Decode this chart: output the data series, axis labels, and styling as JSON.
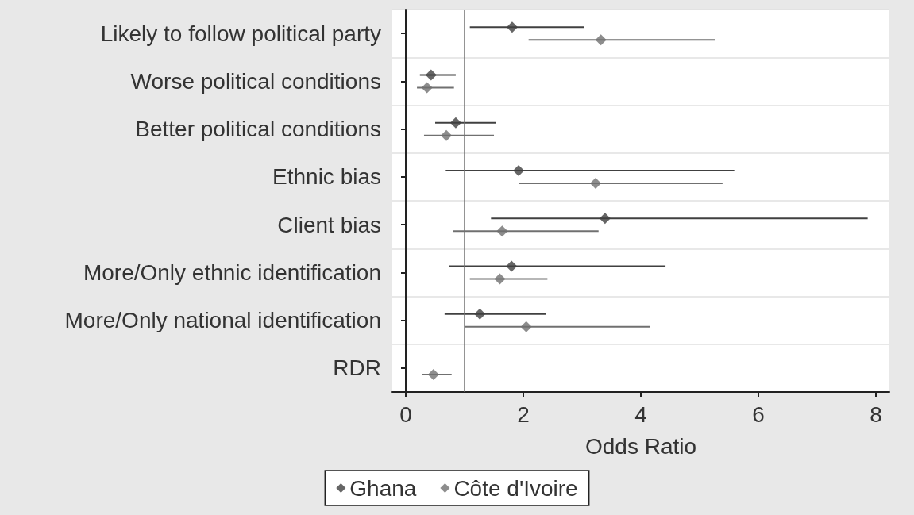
{
  "chart_data": {
    "type": "scatter",
    "xlabel": "Odds Ratio",
    "categories": [
      "Likely to follow political party",
      "Worse political conditions",
      "Better political conditions",
      "Ethnic bias",
      "Client bias",
      "More/Only ethnic identification",
      "More/Only national identification",
      "RDR"
    ],
    "series": [
      {
        "name": "Ghana",
        "color": "#404040",
        "values": [
          1.81,
          0.43,
          0.85,
          1.92,
          3.39,
          1.8,
          1.26,
          null
        ],
        "errors": [
          [
            1.09,
            3.03
          ],
          [
            0.24,
            0.85
          ],
          [
            0.5,
            1.54
          ],
          [
            0.68,
            5.59
          ],
          [
            1.45,
            7.86
          ],
          [
            0.73,
            4.42
          ],
          [
            0.66,
            2.38
          ],
          null
        ]
      },
      {
        "name": "Côte d'Ivoire",
        "color": "#707070",
        "values": [
          3.32,
          0.36,
          0.69,
          3.23,
          1.64,
          1.6,
          2.05,
          0.47
        ],
        "errors": [
          [
            2.09,
            5.27
          ],
          [
            0.19,
            0.82
          ],
          [
            0.31,
            1.5
          ],
          [
            1.93,
            5.39
          ],
          [
            0.8,
            3.28
          ],
          [
            1.09,
            2.41
          ],
          [
            1.01,
            4.16
          ],
          [
            0.28,
            0.78
          ]
        ]
      }
    ],
    "orientation": "horizontal",
    "xlim": [
      -0.23,
      8.23
    ],
    "xticks": [
      0,
      2,
      4,
      6,
      8
    ],
    "ref_lines": [
      {
        "axis": "x",
        "value": 1,
        "color": "#707070"
      }
    ],
    "grid": "y",
    "legend": "bottom",
    "marker": "diamond"
  }
}
